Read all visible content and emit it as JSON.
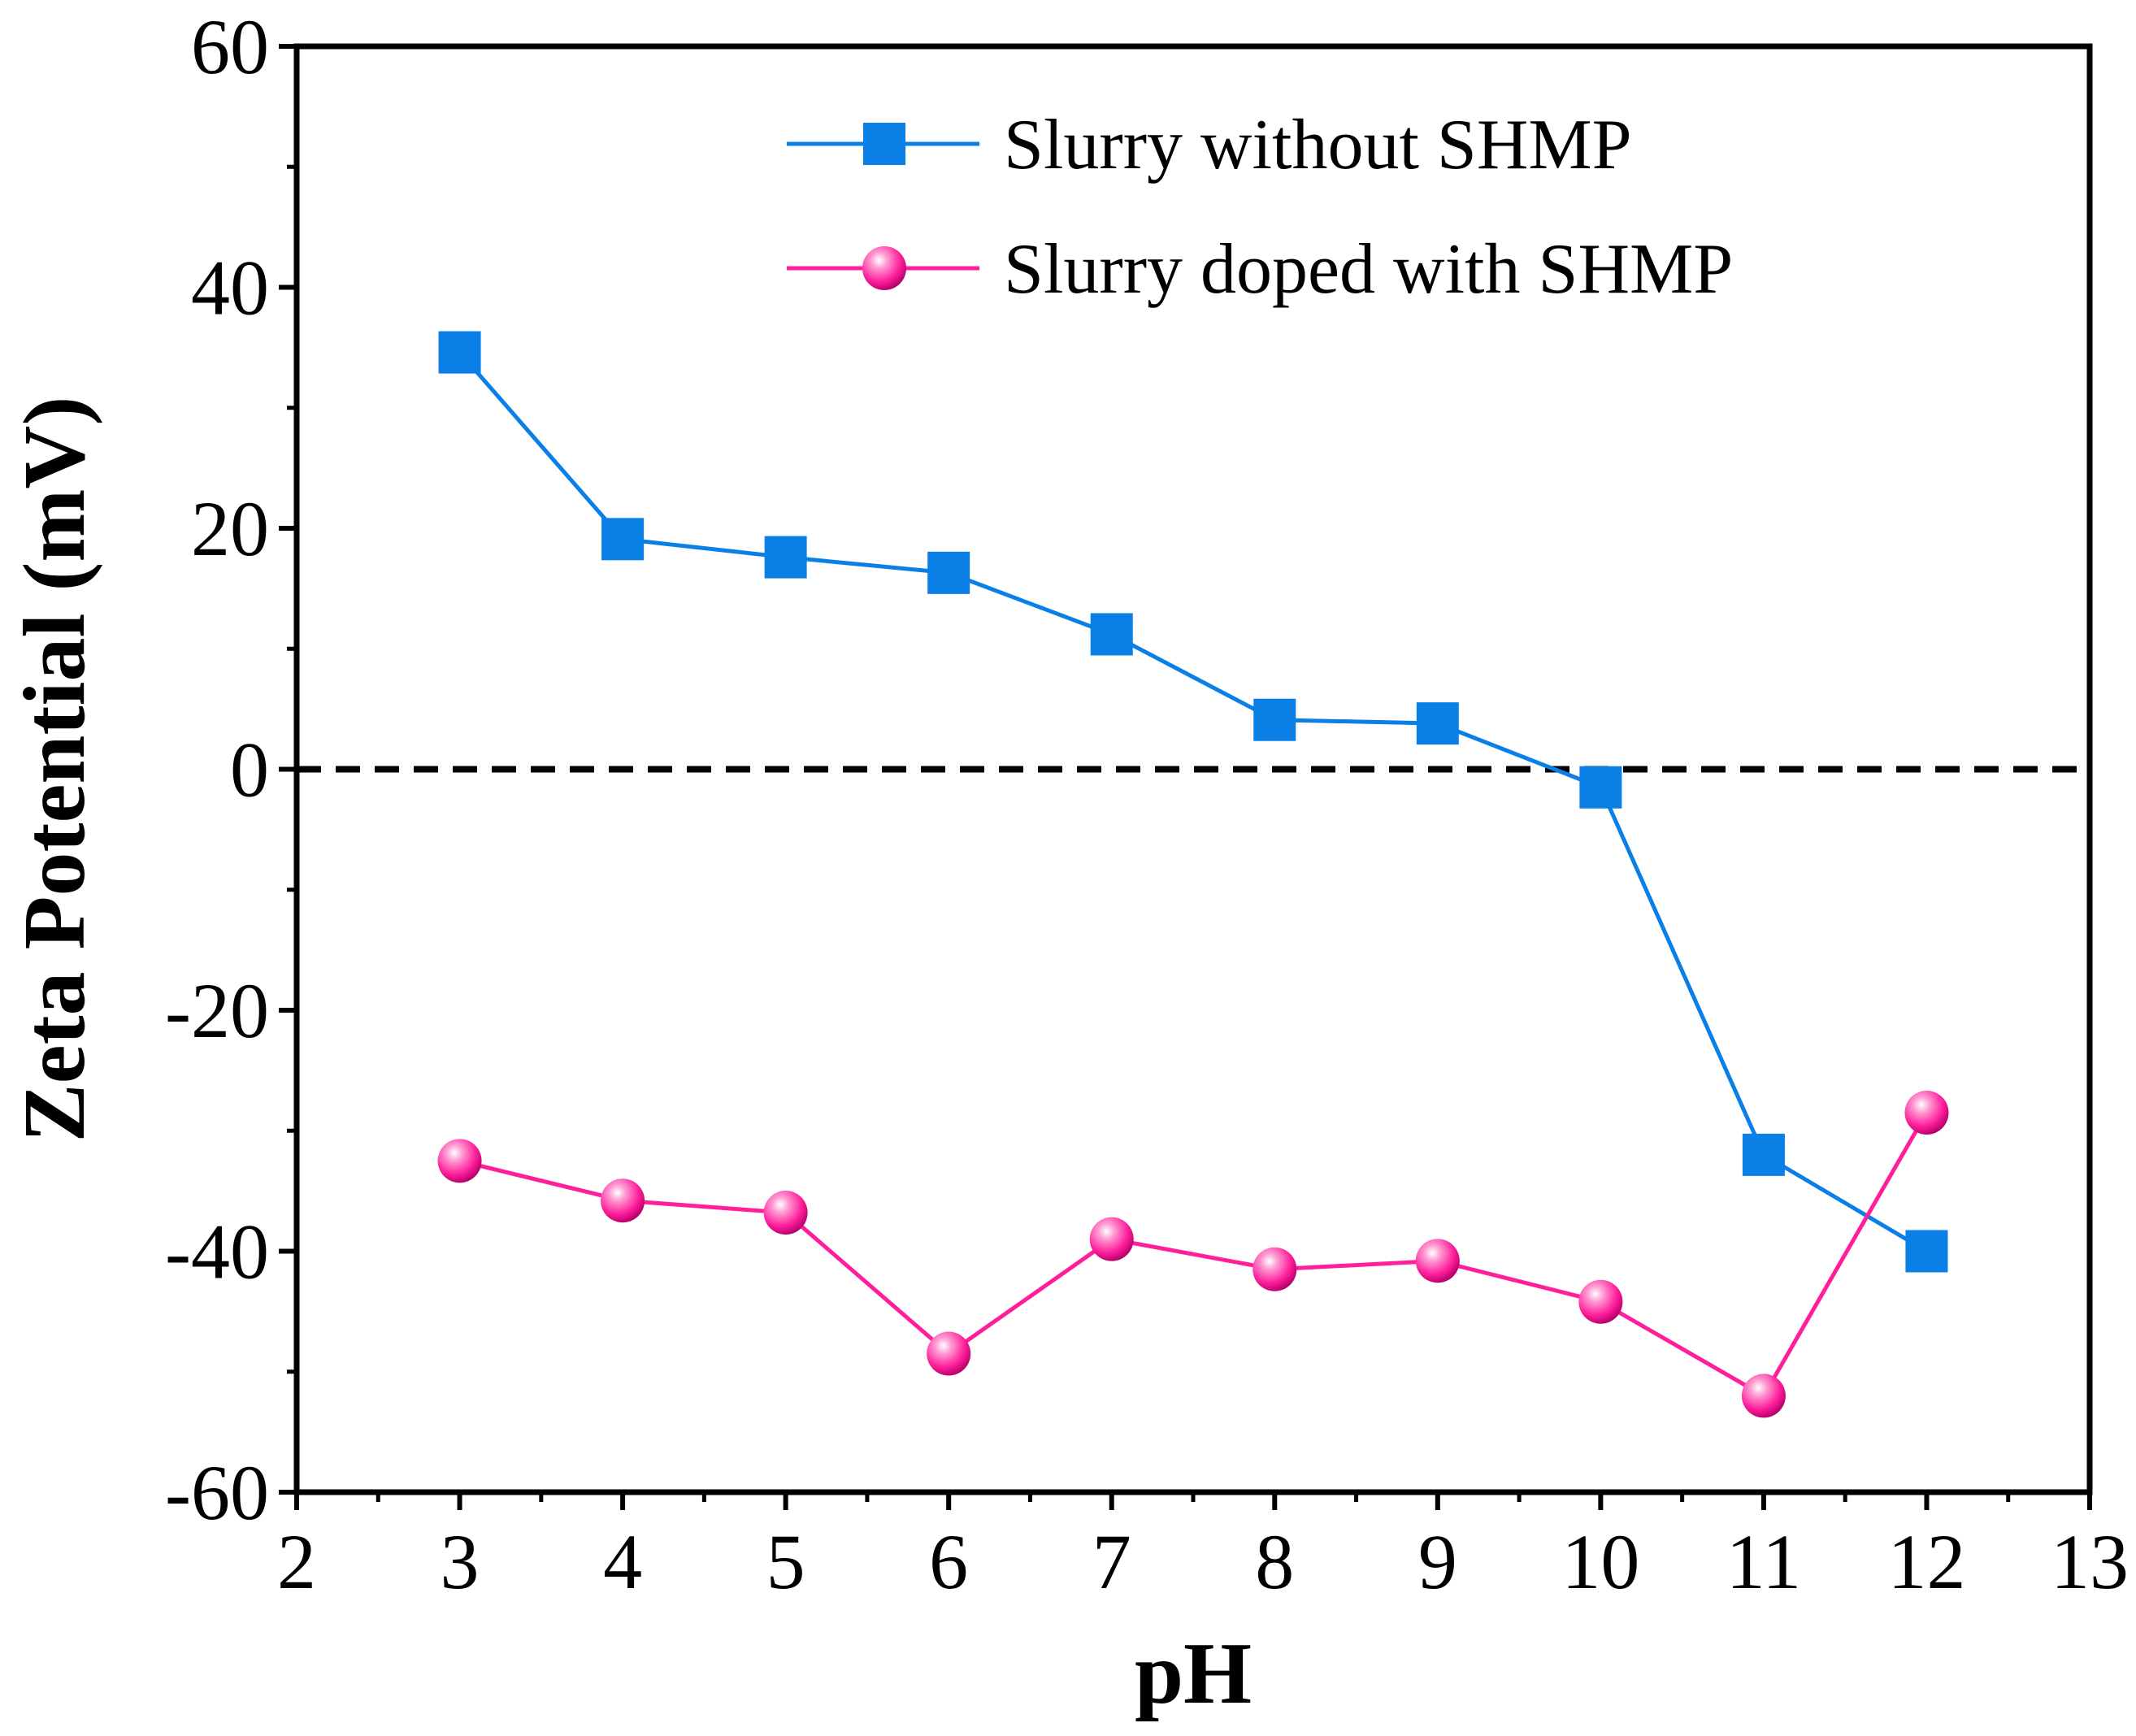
{
  "chart_data": {
    "type": "line",
    "xlabel": "pH",
    "ylabel": "Zeta Potential (mV)",
    "xlim": [
      2,
      13
    ],
    "ylim": [
      -60,
      60
    ],
    "xticks": [
      2,
      3,
      4,
      5,
      6,
      7,
      8,
      9,
      10,
      11,
      12,
      13
    ],
    "yticks": [
      -60,
      -40,
      -20,
      0,
      20,
      40,
      60
    ],
    "x_tick_labels": [
      "2",
      "3",
      "4",
      "5",
      "6",
      "7",
      "8",
      "9",
      "10",
      "11",
      "12",
      "13"
    ],
    "y_tick_labels": [
      "-60",
      "-40",
      "-20",
      "0",
      "20",
      "40",
      "60"
    ],
    "reference_line": {
      "y": 0,
      "style": "dashed",
      "color": "#000000"
    },
    "legend_position": "top-right",
    "grid": false,
    "series": [
      {
        "name": "Slurry without SHMP",
        "marker": "square",
        "color": "#0a7fe6",
        "x": [
          3,
          4,
          5,
          6,
          7,
          8,
          9,
          10,
          11,
          12
        ],
        "y": [
          34.6,
          19.1,
          17.6,
          16.3,
          11.2,
          4.1,
          3.8,
          -1.5,
          -32.0,
          -40.0
        ]
      },
      {
        "name": "Slurry doped with SHMP",
        "marker": "sphere",
        "color": "#ff1e9b",
        "x": [
          3,
          4,
          5,
          6,
          7,
          8,
          9,
          10,
          11,
          12
        ],
        "y": [
          -32.5,
          -35.8,
          -36.8,
          -48.5,
          -39.0,
          -41.5,
          -40.8,
          -44.2,
          -52.0,
          -28.5
        ]
      }
    ]
  }
}
